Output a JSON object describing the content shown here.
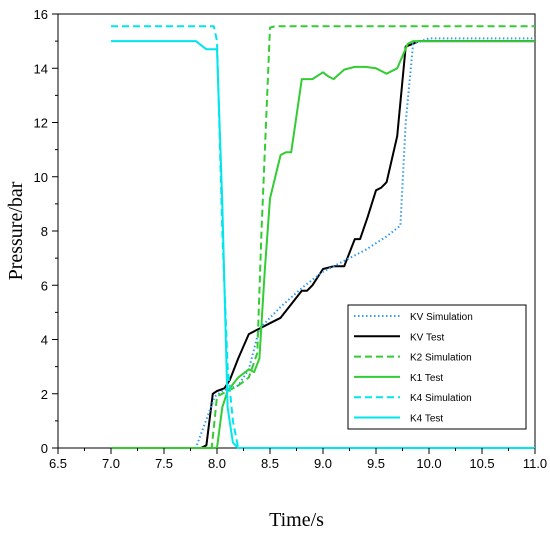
{
  "chart_data": {
    "type": "line",
    "title": "",
    "xlabel": "Time/s",
    "ylabel": "Pressure/bar",
    "xlim": [
      6.5,
      11.0
    ],
    "ylim": [
      0,
      16
    ],
    "xticks": [
      "6.5",
      "7.0",
      "7.5",
      "8.0",
      "8.5",
      "9.0",
      "9.5",
      "10.0",
      "10.5",
      "11.0"
    ],
    "yticks": [
      "0",
      "2",
      "4",
      "6",
      "8",
      "10",
      "12",
      "14",
      "16"
    ],
    "grid": false,
    "legend_position": "bottom-right",
    "series": [
      {
        "name": "KV Simulation",
        "color": "#3399ee",
        "dash": "dotted",
        "x": [
          7.0,
          7.8,
          7.98,
          8.05,
          8.2,
          8.3,
          8.4,
          8.6,
          8.8,
          9.0,
          9.2,
          9.4,
          9.6,
          9.73,
          9.78,
          9.85,
          10.0,
          10.5,
          11.0
        ],
        "y": [
          0,
          0,
          1.9,
          2.1,
          2.3,
          2.9,
          4.4,
          5.2,
          5.9,
          6.5,
          6.9,
          7.3,
          7.8,
          8.2,
          12.0,
          14.9,
          15.1,
          15.1,
          15.1
        ]
      },
      {
        "name": "KV Test",
        "color": "#000000",
        "dash": "solid",
        "x": [
          7.0,
          7.85,
          7.9,
          7.96,
          8.0,
          8.07,
          8.12,
          8.2,
          8.3,
          8.4,
          8.5,
          8.6,
          8.7,
          8.8,
          8.85,
          8.9,
          9.0,
          9.1,
          9.2,
          9.3,
          9.35,
          9.42,
          9.5,
          9.55,
          9.6,
          9.7,
          9.78,
          9.85,
          9.9,
          10.0,
          11.0
        ],
        "y": [
          0,
          0,
          0.1,
          2.0,
          2.1,
          2.2,
          2.5,
          3.3,
          4.2,
          4.4,
          4.6,
          4.8,
          5.3,
          5.8,
          5.8,
          6.0,
          6.6,
          6.7,
          6.7,
          7.7,
          7.7,
          8.5,
          9.5,
          9.6,
          9.8,
          11.5,
          14.8,
          14.9,
          15.0,
          15.0,
          15.0
        ]
      },
      {
        "name": "K2 Simulation",
        "color": "#33cc33",
        "dash": "dashed",
        "x": [
          7.0,
          7.95,
          8.0,
          8.1,
          8.2,
          8.3,
          8.38,
          8.42,
          8.5,
          8.55,
          9.0,
          10.0,
          11.0
        ],
        "y": [
          0,
          0,
          1.9,
          2.1,
          2.3,
          2.6,
          3.5,
          8.0,
          15.5,
          15.55,
          15.55,
          15.55,
          15.55
        ]
      },
      {
        "name": "K1 Test",
        "color": "#33cc33",
        "dash": "solid",
        "x": [
          7.0,
          8.0,
          8.05,
          8.1,
          8.2,
          8.3,
          8.35,
          8.4,
          8.45,
          8.5,
          8.6,
          8.65,
          8.7,
          8.8,
          8.85,
          8.9,
          9.0,
          9.05,
          9.1,
          9.2,
          9.3,
          9.4,
          9.5,
          9.6,
          9.7,
          9.8,
          9.85,
          10.0,
          11.0
        ],
        "y": [
          0,
          0,
          1.5,
          2.1,
          2.6,
          2.9,
          2.8,
          3.3,
          6.5,
          9.2,
          10.8,
          10.9,
          10.9,
          13.6,
          13.6,
          13.6,
          13.85,
          13.7,
          13.6,
          13.95,
          14.05,
          14.05,
          14.0,
          13.8,
          14.0,
          14.9,
          15.0,
          15.0,
          15.0
        ]
      },
      {
        "name": "K4 Simulation",
        "color": "#00e5ee",
        "dash": "dashed",
        "x": [
          7.0,
          7.97,
          8.0,
          8.05,
          8.1,
          8.15,
          8.2,
          9.0,
          10.0,
          11.0
        ],
        "y": [
          15.55,
          15.55,
          15.0,
          8.0,
          3.0,
          1.0,
          0,
          0,
          0,
          0
        ]
      },
      {
        "name": "K4 Test",
        "color": "#00e5ee",
        "dash": "solid",
        "x": [
          7.0,
          7.8,
          7.9,
          7.95,
          8.0,
          8.05,
          8.1,
          8.15,
          8.2,
          8.3,
          9.0,
          10.0,
          11.0
        ],
        "y": [
          15.0,
          15.0,
          14.7,
          14.7,
          14.7,
          9.0,
          1.5,
          0.2,
          0,
          0,
          0,
          0,
          0
        ]
      }
    ]
  }
}
